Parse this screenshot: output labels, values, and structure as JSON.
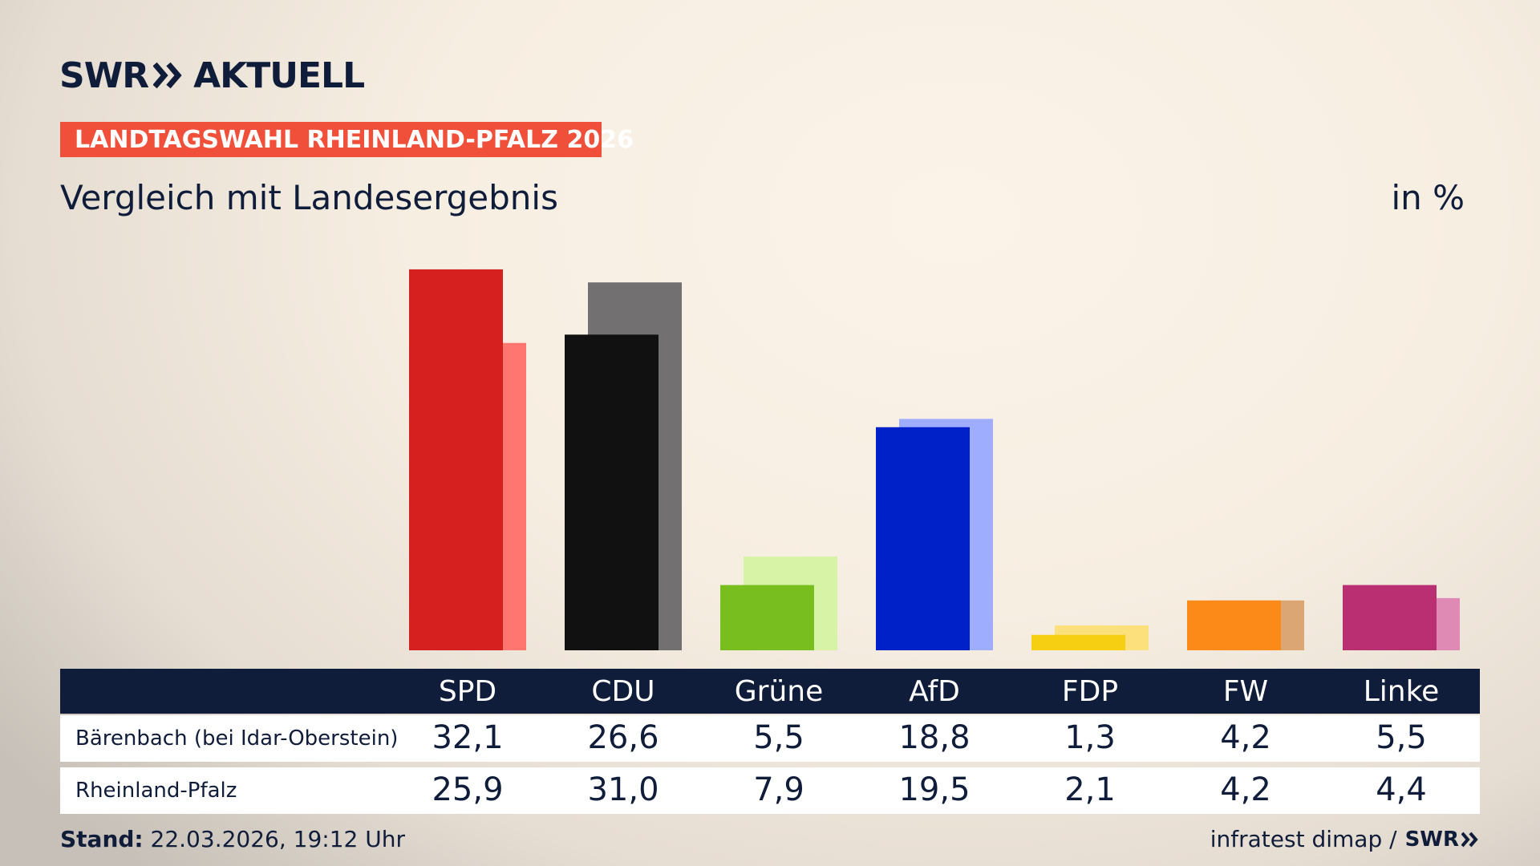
{
  "header": {
    "logo_left": "SWR",
    "logo_right": "AKTUELL",
    "kicker": "LANDTAGSWAHL RHEINLAND-PFALZ 2026",
    "subtitle": "Vergleich mit Landesergebnis",
    "unit": "in %"
  },
  "chart_data": {
    "type": "bar",
    "title": "Vergleich mit Landesergebnis",
    "ylabel": "in %",
    "categories": [
      "SPD",
      "CDU",
      "Grüne",
      "AfD",
      "FDP",
      "FW",
      "Linke"
    ],
    "series": [
      {
        "name": "Bärenbach (bei Idar-Oberstein)",
        "values": [
          32.1,
          26.6,
          5.5,
          18.8,
          1.3,
          4.2,
          5.5
        ]
      },
      {
        "name": "Rheinland-Pfalz",
        "values": [
          25.9,
          31.0,
          7.9,
          19.5,
          2.1,
          4.2,
          4.4
        ]
      }
    ],
    "colors_primary": [
      "#d61f1f",
      "#111111",
      "#78be1e",
      "#0020c8",
      "#f7cf12",
      "#fb8a18",
      "#b92f72"
    ],
    "colors_secondary": [
      "#ff7670",
      "#727070",
      "#d7f4a6",
      "#9fadff",
      "#fbe07c",
      "#dba574",
      "#df8ab5"
    ],
    "grid": false,
    "legend": "table-below"
  },
  "table": {
    "rows": [
      {
        "label": "Bärenbach (bei Idar-Oberstein)",
        "values": [
          "32,1",
          "26,6",
          "5,5",
          "18,8",
          "1,3",
          "4,2",
          "5,5"
        ]
      },
      {
        "label": "Rheinland-Pfalz",
        "values": [
          "25,9",
          "31,0",
          "7,9",
          "19,5",
          "2,1",
          "4,2",
          "4,4"
        ]
      }
    ]
  },
  "footer": {
    "stand_label": "Stand:",
    "stand_value": "22.03.2026, 19:12 Uhr",
    "source": "infratest dimap /",
    "source_logo": "SWR"
  }
}
